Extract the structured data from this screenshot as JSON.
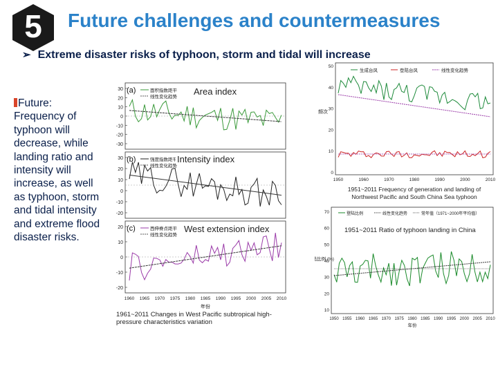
{
  "slide": {
    "number": "5",
    "title": "Future challenges and countermeasures",
    "bullet": "Extreme disaster risks of typhoon, storm and tidal will increase",
    "left_text": "Future: Frequency of typhoon will decrease, while landing ratio and intensity will increase, as well as typhoon, storm and tidal intensity and extreme flood disaster risks."
  },
  "figure_subtropical": {
    "panel_a_label": "(a)",
    "panel_b_label": "(b)",
    "panel_c_label": "(c)",
    "label_area": "Area index",
    "label_intensity": "Intensity index",
    "label_west": "West extension index",
    "legend_a_1": "面积指数距平",
    "legend_a_2": "线性变化趋势",
    "legend_b_1": "强度指数距平",
    "legend_b_2": "线性变化趋势",
    "legend_c_1": "西伸脊点距平",
    "legend_c_2": "线性变化趋势",
    "xlabel": "年份",
    "caption": "1961~2011 Changes in West Pacific subtropical high-pressure characteristics variation",
    "x_ticks": [
      "1960",
      "1965",
      "1970",
      "1975",
      "1980",
      "1985",
      "1990",
      "1995",
      "2000",
      "2005",
      "2010"
    ],
    "y_ticks_a": [
      "30",
      "20",
      "10",
      "0",
      "-10",
      "-20",
      "-30"
    ],
    "y_ticks_b": [
      "30",
      "20",
      "10",
      "0",
      "-10",
      "-20"
    ],
    "y_ticks_c": [
      "20",
      "10",
      "0",
      "-10",
      "-20"
    ]
  },
  "figure_frequency": {
    "legend_1": "生成台风",
    "legend_2": "登陆台风",
    "legend_3": "线性变化趋势",
    "ylabel": "频次",
    "y_ticks": [
      "50",
      "40",
      "30",
      "20",
      "10",
      "0"
    ],
    "x_ticks": [
      "1950",
      "1960",
      "1970",
      "1980",
      "1990",
      "2000",
      "2010"
    ],
    "caption": "1951~2011 Frequency of generation and landing of Northwest Pacific and South China Sea typhoon"
  },
  "figure_ratio": {
    "legend_1": "登陆比例",
    "legend_2": "线性变化趋势",
    "legend_3": "常年值（1971~2000年平均值）",
    "ylabel": "登陆比例 (%)",
    "xlabel": "年份",
    "caption": "1951~2011 Ratio of typhoon landing in China",
    "y_ticks": [
      "70",
      "60",
      "50",
      "40",
      "30",
      "20",
      "10"
    ],
    "x_ticks": [
      "1950",
      "1955",
      "1960",
      "1965",
      "1970",
      "1975",
      "1980",
      "1985",
      "1990",
      "1995",
      "2000",
      "2005",
      "2010"
    ]
  },
  "colors": {
    "title": "#2b82c9",
    "text": "#0a1f4a",
    "green_series": "#3a9a3a",
    "black_series": "#222222",
    "purple_series": "#9a3aa8",
    "red_series": "#cc2222",
    "frequency_series": "#1d8a3a",
    "ratio_series": "#1a8a2a"
  }
}
